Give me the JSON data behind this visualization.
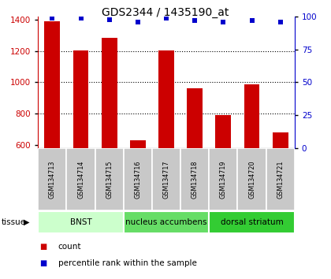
{
  "title": "GDS2344 / 1435190_at",
  "samples": [
    "GSM134713",
    "GSM134714",
    "GSM134715",
    "GSM134716",
    "GSM134717",
    "GSM134718",
    "GSM134719",
    "GSM134720",
    "GSM134721"
  ],
  "counts": [
    1390,
    1205,
    1285,
    630,
    1205,
    960,
    790,
    985,
    680
  ],
  "percentiles": [
    99,
    99,
    98,
    96,
    99,
    97,
    96,
    97,
    96
  ],
  "ylim_left": [
    580,
    1420
  ],
  "ylim_right": [
    0,
    100
  ],
  "yticks_left": [
    600,
    800,
    1000,
    1200,
    1400
  ],
  "yticks_right": [
    0,
    25,
    50,
    75,
    100
  ],
  "bar_color": "#cc0000",
  "scatter_color": "#0000cc",
  "tissue_groups": [
    {
      "label": "BNST",
      "indices": [
        0,
        1,
        2
      ],
      "color": "#ccffcc"
    },
    {
      "label": "nucleus accumbens",
      "indices": [
        3,
        4,
        5
      ],
      "color": "#66dd66"
    },
    {
      "label": "dorsal striatum",
      "indices": [
        6,
        7,
        8
      ],
      "color": "#33cc33"
    }
  ],
  "legend_items": [
    {
      "label": "count",
      "color": "#cc0000"
    },
    {
      "label": "percentile rank within the sample",
      "color": "#0000cc"
    }
  ],
  "tissue_label": "tissue",
  "background_color": "#ffffff",
  "bar_width": 0.55,
  "sample_box_color": "#c8c8c8",
  "left_spine_color": "#cc0000",
  "right_spine_color": "#0000cc"
}
